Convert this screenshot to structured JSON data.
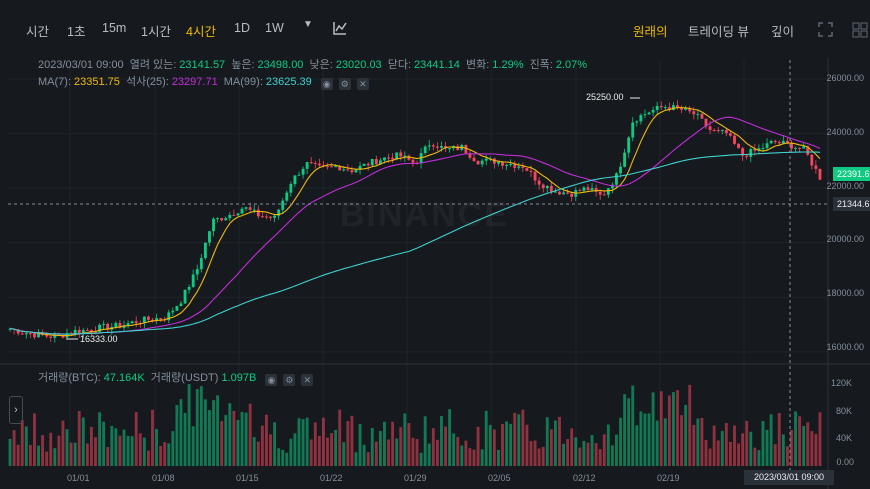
{
  "toolbar": {
    "timeframes": [
      "시간",
      "1초",
      "15m",
      "1시간",
      "4시간",
      "1D",
      "1W"
    ],
    "active_timeframe": "4시간",
    "views": [
      "원래의",
      "트레이딩 뷰",
      "깊이"
    ],
    "active_view": "원래의"
  },
  "legend": {
    "datetime": "2023/03/01 09:00",
    "open_label": "열려 있는:",
    "open": "23141.57",
    "high_label": "높은:",
    "high": "23498.00",
    "low_label": "낮은:",
    "low": "23020.03",
    "close_label": "닫다:",
    "close": "23441.14",
    "change_label": "변화:",
    "change": "1.29%",
    "amp_label": "진폭:",
    "amp": "2.07%",
    "ma7_label": "MA(7):",
    "ma7": "23351.75",
    "ma25_label": "석사(25):",
    "ma25": "23297.71",
    "ma99_label": "MA(99):",
    "ma99": "23625.39",
    "vol_label": "거래량(BTC):",
    "vol_btc": "47.164K",
    "volq_label": "거래량(USDT)",
    "vol_usdt": "1.097B"
  },
  "price_axis": [
    "26000.00",
    "24000.00",
    "22000.00",
    "20000.00",
    "18000.00",
    "16000.00"
  ],
  "volume_axis": [
    "120K",
    "80K",
    "40K",
    "0.00"
  ],
  "date_axis": [
    "01/01",
    "01/08",
    "01/15",
    "01/22",
    "01/29",
    "02/05",
    "02/12",
    "02/19"
  ],
  "last_price": "22391.6",
  "crosshair_price": "21344.6",
  "crosshair_time": "2023/03/01 09:00",
  "max_label": "25250.00",
  "min_label": "16333.00",
  "watermark": "BINANCE",
  "colors": {
    "up": "#0ecb81",
    "down": "#f6465d",
    "ma7": "#f0b90b",
    "ma25": "#c02ed8",
    "ma99": "#3fd0d0",
    "accent": "#f0b90b"
  },
  "chart_data": {
    "type": "candlestick",
    "series": [
      {
        "name": "MA(7)",
        "values_hint": "short moving average"
      },
      {
        "name": "석사(25)",
        "values_hint": "mid moving average"
      },
      {
        "name": "MA(99)",
        "values_hint": "long moving average"
      }
    ],
    "close_path": [
      16850,
      16700,
      16600,
      16550,
      16750,
      16800,
      16900,
      16950,
      17100,
      17200,
      17250,
      17900,
      19000,
      20800,
      21000,
      21300,
      21000,
      20900,
      22200,
      22900,
      22700,
      22800,
      22650,
      22900,
      23100,
      23200,
      22900,
      23700,
      23400,
      23500,
      23000,
      23000,
      22900,
      22800,
      22200,
      21900,
      21800,
      22000,
      21700,
      22500,
      24500,
      24800,
      25000,
      24900,
      24700,
      24100,
      24000,
      23200,
      23400,
      23700,
      23600,
      23400,
      22400
    ],
    "ylim": [
      15700,
      26700
    ]
  }
}
